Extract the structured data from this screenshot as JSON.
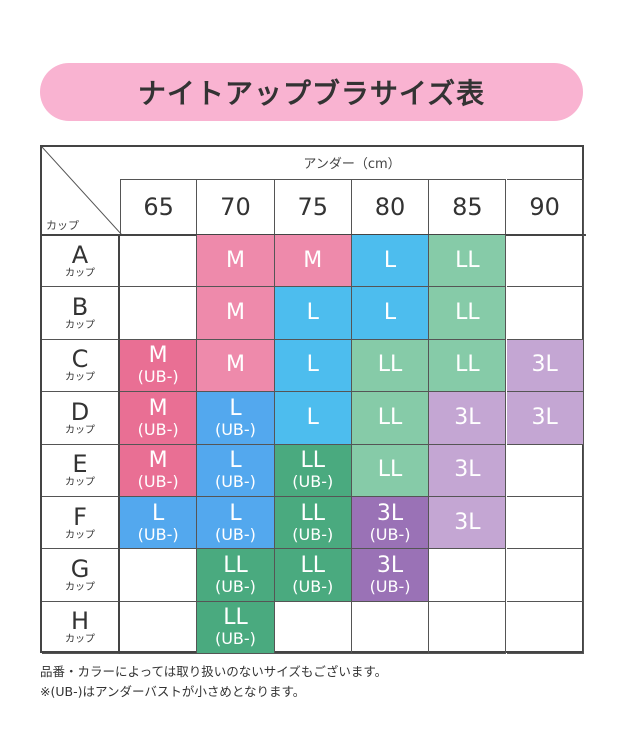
{
  "title": "ナイトアップブラサイズ表",
  "table": {
    "under_label": "アンダー（cm）",
    "cup_label": "カップ",
    "columns": [
      "65",
      "70",
      "75",
      "80",
      "85",
      "90"
    ],
    "cup_suffix": "カップ",
    "rows": [
      {
        "cup": "A",
        "cells": [
          null,
          {
            "size": "M"
          },
          {
            "size": "M"
          },
          {
            "size": "L"
          },
          {
            "size": "LL"
          },
          null
        ]
      },
      {
        "cup": "B",
        "cells": [
          null,
          {
            "size": "M"
          },
          {
            "size": "L"
          },
          {
            "size": "L"
          },
          {
            "size": "LL"
          },
          null
        ]
      },
      {
        "cup": "C",
        "cells": [
          {
            "size": "M",
            "note": "(UB-)"
          },
          {
            "size": "M"
          },
          {
            "size": "L"
          },
          {
            "size": "LL"
          },
          {
            "size": "LL"
          },
          {
            "size": "3L"
          }
        ]
      },
      {
        "cup": "D",
        "cells": [
          {
            "size": "M",
            "note": "(UB-)"
          },
          {
            "size": "L",
            "note": "(UB-)"
          },
          {
            "size": "L"
          },
          {
            "size": "LL"
          },
          {
            "size": "3L"
          },
          {
            "size": "3L"
          }
        ]
      },
      {
        "cup": "E",
        "cells": [
          {
            "size": "M",
            "note": "(UB-)"
          },
          {
            "size": "L",
            "note": "(UB-)"
          },
          {
            "size": "LL",
            "note": "(UB-)"
          },
          {
            "size": "LL"
          },
          {
            "size": "3L"
          },
          null
        ]
      },
      {
        "cup": "F",
        "cells": [
          {
            "size": "L",
            "note": "(UB-)"
          },
          {
            "size": "L",
            "note": "(UB-)"
          },
          {
            "size": "LL",
            "note": "(UB-)"
          },
          {
            "size": "3L",
            "note": "(UB-)"
          },
          {
            "size": "3L"
          },
          null
        ]
      },
      {
        "cup": "G",
        "cells": [
          null,
          {
            "size": "LL",
            "note": "(UB-)"
          },
          {
            "size": "LL",
            "note": "(UB-)"
          },
          {
            "size": "3L",
            "note": "(UB-)"
          },
          null,
          null
        ]
      },
      {
        "cup": "H",
        "cells": [
          null,
          {
            "size": "LL",
            "note": "(UB-)"
          },
          null,
          null,
          null,
          null
        ]
      }
    ]
  },
  "colors": {
    "M": "#ee8aab",
    "M_UB": "#e96f94",
    "L": "#4dbdee",
    "L_UB": "#53a8ee",
    "LL": "#86cba8",
    "LL_UB": "#4aaa7f",
    "3L": "#c4a6d3",
    "3L_UB": "#9a72b6",
    "title_bg": "#f9b3d1"
  },
  "notes": [
    "品番・カラーによっては取り扱いのないサイズもございます。",
    "※(UB-)はアンダーバストが小さめとなります。"
  ]
}
